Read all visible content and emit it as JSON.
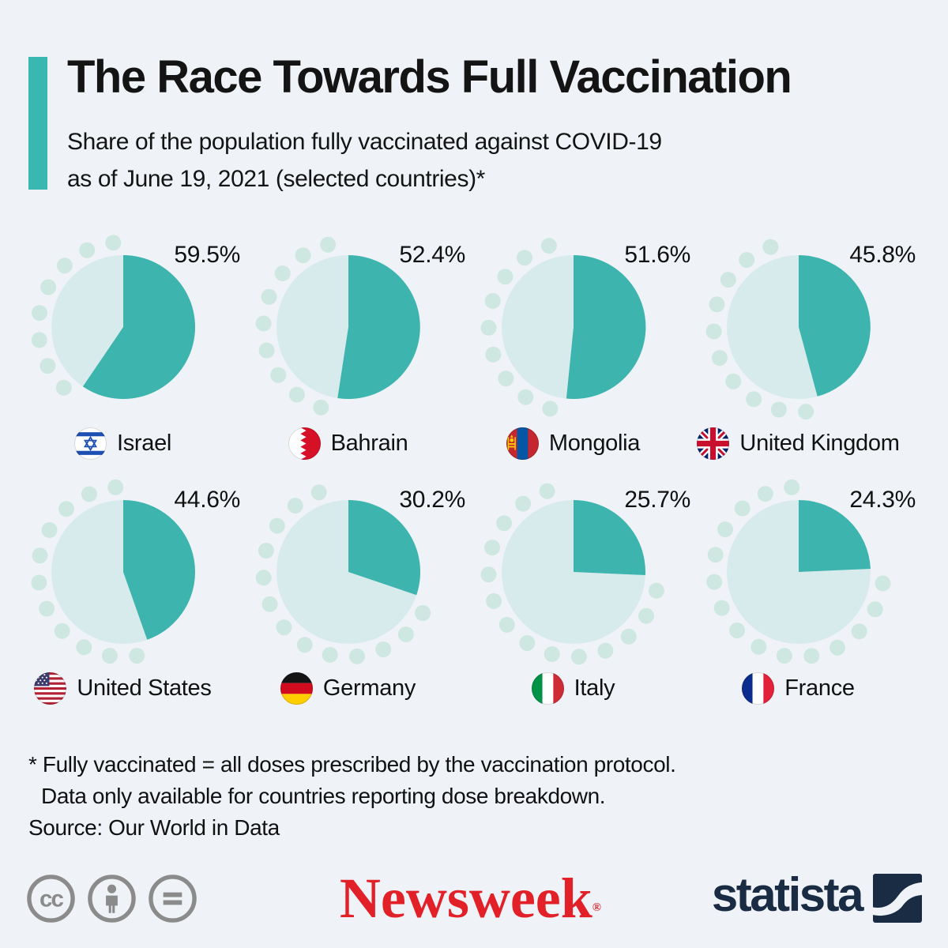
{
  "header": {
    "title": "The Race Towards Full Vaccination",
    "subtitle_line1": "Share of the population fully vaccinated against COVID-19",
    "subtitle_line2": "as of June 19, 2021 (selected countries)*"
  },
  "chart_data": {
    "type": "pie",
    "title": "Share of the population fully vaccinated against COVID-19 as of June 19, 2021 (selected countries)",
    "unit": "%",
    "legend_position": "none",
    "series": [
      {
        "country": "Israel",
        "value": 59.5,
        "display": "59.5%",
        "flag": "israel"
      },
      {
        "country": "Bahrain",
        "value": 52.4,
        "display": "52.4%",
        "flag": "bahrain"
      },
      {
        "country": "Mongolia",
        "value": 51.6,
        "display": "51.6%",
        "flag": "mongolia"
      },
      {
        "country": "United Kingdom",
        "value": 45.8,
        "display": "45.8%",
        "flag": "united-kingdom"
      },
      {
        "country": "United States",
        "value": 44.6,
        "display": "44.6%",
        "flag": "united-states"
      },
      {
        "country": "Germany",
        "value": 30.2,
        "display": "30.2%",
        "flag": "germany"
      },
      {
        "country": "Italy",
        "value": 25.7,
        "display": "25.7%",
        "flag": "italy"
      },
      {
        "country": "France",
        "value": 24.3,
        "display": "24.3%",
        "flag": "france"
      }
    ],
    "colors": {
      "filled": "#3db4ae",
      "remaining": "#d8ebec",
      "dots": "#cfe7e1",
      "accent": "#39b7b0",
      "background": "#eff3f8"
    }
  },
  "footnotes": {
    "line1": "* Fully vaccinated = all doses prescribed by the vaccination protocol.",
    "line2": "Data only available for countries reporting dose breakdown.",
    "source": "Source: Our World in Data"
  },
  "branding": {
    "newsweek": "Newsweek",
    "newsweek_mark": "®",
    "newsweek_color": "#e22028",
    "statista": "statista",
    "statista_color": "#1a2c44",
    "cc_label": "cc",
    "license_icons": [
      "cc-icon",
      "attribution-icon",
      "equal-icon"
    ]
  }
}
